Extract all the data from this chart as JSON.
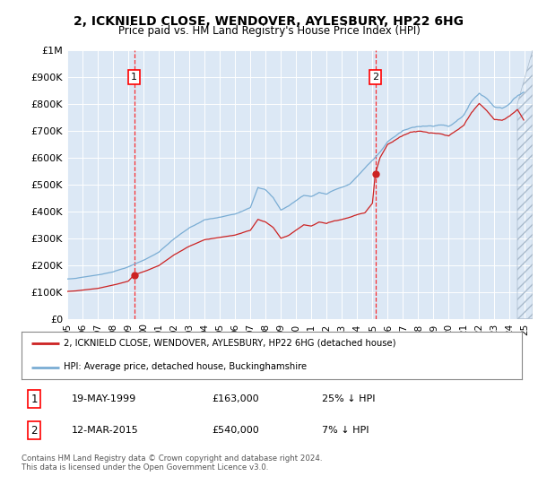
{
  "title": "2, ICKNIELD CLOSE, WENDOVER, AYLESBURY, HP22 6HG",
  "subtitle": "Price paid vs. HM Land Registry's House Price Index (HPI)",
  "footer": "Contains HM Land Registry data © Crown copyright and database right 2024.\nThis data is licensed under the Open Government Licence v3.0.",
  "legend_line1": "2, ICKNIELD CLOSE, WENDOVER, AYLESBURY, HP22 6HG (detached house)",
  "legend_line2": "HPI: Average price, detached house, Buckinghamshire",
  "sale1_label": "1",
  "sale1_date": "19-MAY-1999",
  "sale1_price": "£163,000",
  "sale1_hpi": "25% ↓ HPI",
  "sale1_year": 1999.38,
  "sale1_value": 163000,
  "sale2_label": "2",
  "sale2_date": "12-MAR-2015",
  "sale2_price": "£540,000",
  "sale2_hpi": "7% ↓ HPI",
  "sale2_year": 2015.19,
  "sale2_value": 540000,
  "hpi_color": "#7aadd4",
  "property_color": "#cc2222",
  "background_color": "#ffffff",
  "plot_bg_color": "#dce8f5",
  "ylim": [
    0,
    1000000
  ],
  "xlim": [
    1995.0,
    2025.5
  ],
  "yticks": [
    0,
    100000,
    200000,
    300000,
    400000,
    500000,
    600000,
    700000,
    800000,
    900000,
    1000000
  ],
  "ytick_labels": [
    "£0",
    "£100K",
    "£200K",
    "£300K",
    "£400K",
    "£500K",
    "£600K",
    "£700K",
    "£800K",
    "£900K",
    "£1M"
  ],
  "xtick_labels": [
    "95",
    "96",
    "97",
    "98",
    "99",
    "00",
    "01",
    "02",
    "03",
    "04",
    "05",
    "06",
    "07",
    "08",
    "09",
    "10",
    "11",
    "12",
    "13",
    "14",
    "15",
    "16",
    "17",
    "18",
    "19",
    "20",
    "21",
    "22",
    "23",
    "24",
    "25"
  ],
  "xtick_years": [
    1995,
    1996,
    1997,
    1998,
    1999,
    2000,
    2001,
    2002,
    2003,
    2004,
    2005,
    2006,
    2007,
    2008,
    2009,
    2010,
    2011,
    2012,
    2013,
    2014,
    2015,
    2016,
    2017,
    2018,
    2019,
    2020,
    2021,
    2022,
    2023,
    2024,
    2025
  ]
}
